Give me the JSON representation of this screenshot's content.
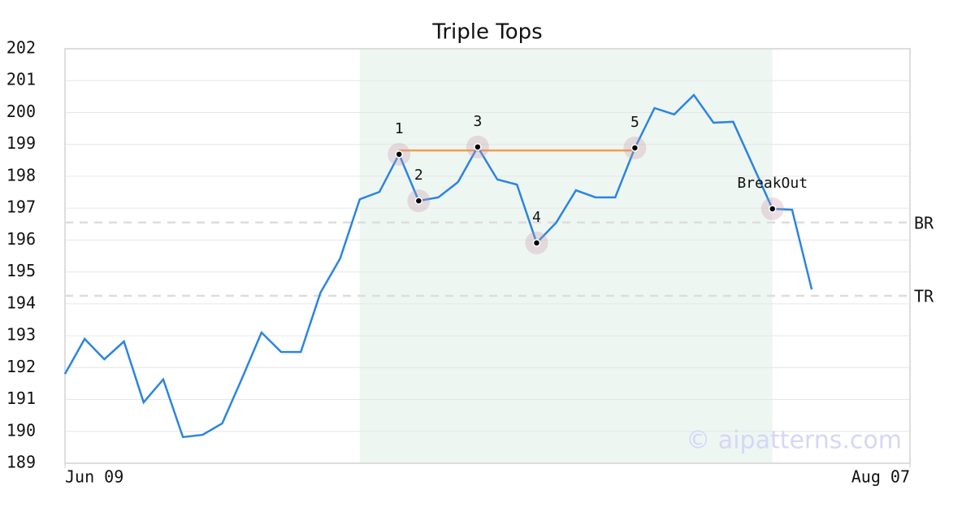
{
  "chart_data": {
    "type": "line",
    "title": "Triple Tops",
    "x": [
      0,
      1,
      2,
      3,
      4,
      5,
      6,
      7,
      8,
      9,
      10,
      11,
      12,
      13,
      14,
      15,
      16,
      17,
      18,
      19,
      20,
      21,
      22,
      23,
      24,
      25,
      26,
      27,
      28,
      29,
      30,
      31,
      32,
      33,
      34,
      35,
      36,
      37,
      38
    ],
    "values": [
      191.8,
      192.9,
      192.26,
      192.82,
      190.91,
      191.63,
      189.82,
      189.89,
      190.25,
      191.65,
      193.1,
      192.49,
      192.49,
      194.35,
      195.42,
      197.28,
      197.51,
      198.69,
      197.23,
      197.34,
      197.82,
      198.92,
      197.9,
      197.74,
      195.91,
      196.55,
      197.56,
      197.34,
      197.34,
      198.89,
      200.14,
      199.94,
      200.55,
      199.68,
      199.71,
      198.35,
      196.98,
      196.95,
      194.45
    ],
    "color": "#2b85e0",
    "xlim": [
      0,
      43
    ],
    "xticks": [
      {
        "value": 0,
        "label": "Jun 09"
      },
      {
        "value": 43,
        "label": "Aug 07"
      }
    ],
    "ylim": [
      189,
      202
    ],
    "yticks": [
      189,
      190,
      191,
      192,
      193,
      194,
      195,
      196,
      197,
      198,
      199,
      200,
      201,
      202
    ],
    "grid": true,
    "shaded": {
      "x": [
        15,
        36
      ],
      "color": "#eef6f2"
    },
    "resistance": {
      "x": [
        17,
        29
      ],
      "value": 198.81,
      "color": "#f0a04b"
    },
    "levels": [
      {
        "label": "BR",
        "value": 196.55
      },
      {
        "label": "TR",
        "value": 194.25
      }
    ],
    "markers": [
      {
        "label": "1",
        "x": 17
      },
      {
        "label": "2",
        "x": 18
      },
      {
        "label": "3",
        "x": 21
      },
      {
        "label": "4",
        "x": 24
      },
      {
        "label": "5",
        "x": 29
      },
      {
        "label": "BreakOut",
        "x": 36
      }
    ],
    "watermark": "© aipatterns.com"
  }
}
